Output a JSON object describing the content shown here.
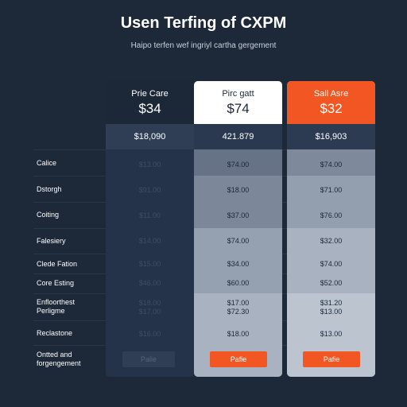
{
  "page": {
    "title": "Usen Terfing of CXPM",
    "subtitle": "Haipo terfen wef ingriyl cartha gergement"
  },
  "colors": {
    "background": "#1d2838",
    "accent": "#f25622",
    "highlight_header": "#ffffff"
  },
  "plans": [
    {
      "name": "Prie Care",
      "price": "$34",
      "subprice": "$18,090",
      "values": [
        "$13.00",
        "$91.00",
        "$11.00",
        "$14.00",
        "$15.00",
        "$46.00",
        "$18.00\n$17.00",
        "$16.00"
      ],
      "button_label": "Palie"
    },
    {
      "name": "Pirc gatt",
      "price": "$74",
      "subprice": "421.879",
      "values": [
        "$74.00",
        "$18.00",
        "$37.00",
        "$74.00",
        "$34.00",
        "$60.00",
        "$17.00\n$72.30",
        "$18.00"
      ],
      "button_label": "Pafie"
    },
    {
      "name": "Sall Asre",
      "price": "$32",
      "subprice": "$16,903",
      "values": [
        "$74.00",
        "$71.00",
        "$76.00",
        "$32.00",
        "$74.00",
        "$52.00",
        "$31.20\n$13.00",
        "$13.00"
      ],
      "button_label": "Pafie"
    }
  ],
  "features": [
    "Calice",
    "Dstorgh",
    "Coiting",
    "Falesiery",
    "Clede Fation",
    "Core Esting",
    "Enfloorthest\nPerligme",
    "Reclastone",
    "Ontted and\nforgengement"
  ]
}
